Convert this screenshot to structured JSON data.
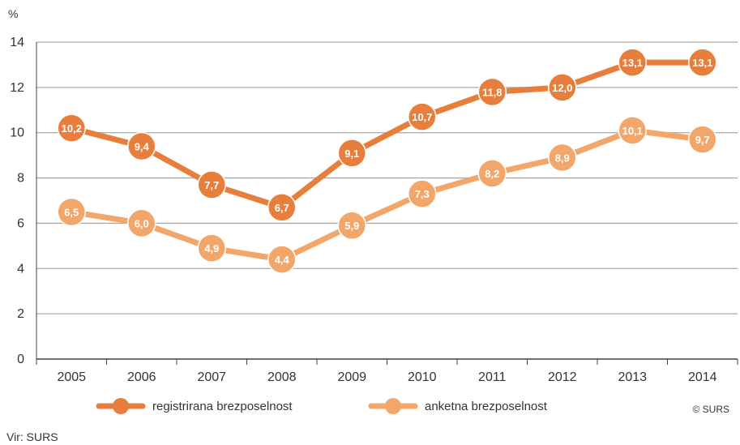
{
  "chart_data": {
    "type": "line",
    "ylabel": "%",
    "ylim": [
      0,
      14
    ],
    "yticks": [
      "0",
      "2",
      "4",
      "6",
      "8",
      "10",
      "12",
      "14"
    ],
    "categories": [
      "2005",
      "2006",
      "2007",
      "2008",
      "2009",
      "2010",
      "2011",
      "2012",
      "2013",
      "2014"
    ],
    "series": [
      {
        "name": "registrirana brezposelnost",
        "color": "#e87e3c",
        "values": [
          10.2,
          9.4,
          7.7,
          6.7,
          9.1,
          10.7,
          11.8,
          12.0,
          13.1,
          13.1
        ],
        "labels": [
          "10,2",
          "9,4",
          "7,7",
          "6,7",
          "9,1",
          "10,7",
          "11,8",
          "12,0",
          "13,1",
          "13,1"
        ]
      },
      {
        "name": "anketna brezposelnost",
        "color": "#f2a66a",
        "values": [
          6.5,
          6.0,
          4.9,
          4.4,
          5.9,
          7.3,
          8.2,
          8.9,
          10.1,
          9.7
        ],
        "labels": [
          "6,5",
          "6,0",
          "4,9",
          "4,4",
          "5,9",
          "7,3",
          "8,2",
          "8,9",
          "10,1",
          "9,7"
        ]
      }
    ],
    "grid": true,
    "legend": "bottom"
  },
  "copyright": "© SURS",
  "source": "Vir: SURS"
}
